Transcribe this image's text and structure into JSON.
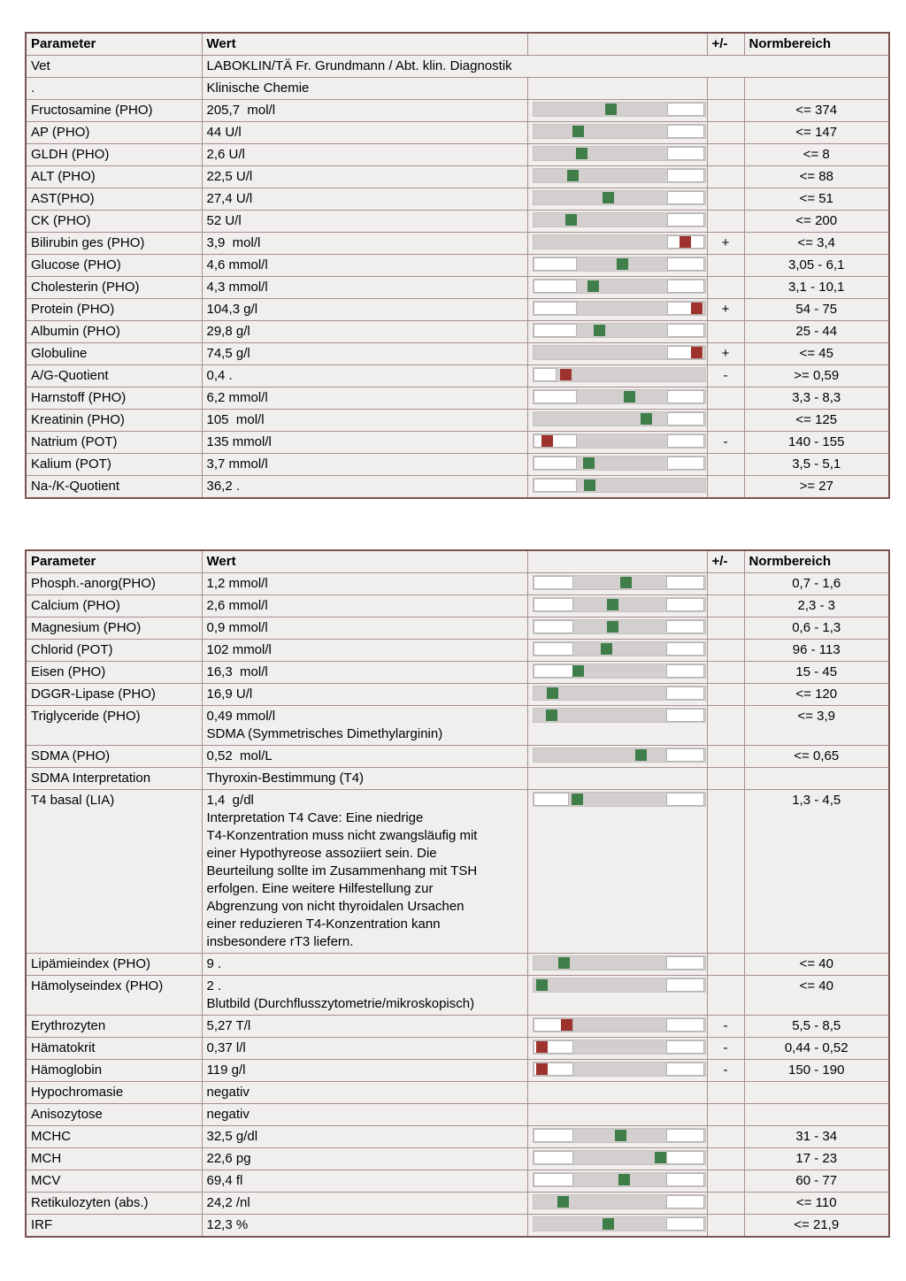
{
  "colors": {
    "marker_green": "#3f7d49",
    "marker_red": "#9e322c",
    "track_gray": "#d2cfce",
    "cell_background": "#f1efee",
    "table_border": "#7a5454"
  },
  "tables": [
    {
      "headers": [
        "Parameter",
        "Wert",
        "",
        "+/-",
        "Normbereich"
      ],
      "rows": [
        {
          "parameter": "Vet",
          "value": "LABOKLIN/TÄ Fr. Grundmann / Abt. klin. Diagnostik",
          "span": true
        },
        {
          "parameter": ".",
          "value": "Klinische Chemie",
          "flag": "",
          "norm": ""
        },
        {
          "parameter": "Fructosamine (PHO)",
          "value": "205,7  mol/l",
          "flag": "",
          "norm": "<= 374",
          "bar": {
            "low": 0,
            "high": 0.776,
            "pos": 0.447,
            "color": "green"
          }
        },
        {
          "parameter": "AP (PHO)",
          "value": "44 U/l",
          "flag": "",
          "norm": "<= 147",
          "bar": {
            "low": 0,
            "high": 0.776,
            "pos": 0.256,
            "color": "green"
          }
        },
        {
          "parameter": "GLDH (PHO)",
          "value": "2,6 U/l",
          "flag": "",
          "norm": "<= 8",
          "bar": {
            "low": 0,
            "high": 0.776,
            "pos": 0.279,
            "color": "green"
          }
        },
        {
          "parameter": "ALT (PHO)",
          "value": "22,5 U/l",
          "flag": "",
          "norm": "<= 88",
          "bar": {
            "low": 0,
            "high": 0.776,
            "pos": 0.226,
            "color": "green"
          }
        },
        {
          "parameter": "AST(PHO)",
          "value": "27,4 U/l",
          "flag": "",
          "norm": "<= 51",
          "bar": {
            "low": 0,
            "high": 0.776,
            "pos": 0.435,
            "color": "green"
          }
        },
        {
          "parameter": "CK (PHO)",
          "value": "52 U/l",
          "flag": "",
          "norm": "<= 200",
          "bar": {
            "low": 0,
            "high": 0.776,
            "pos": 0.219,
            "color": "green"
          }
        },
        {
          "parameter": "Bilirubin ges (PHO)",
          "value": "3,9  mol/l",
          "flag": "+",
          "norm": "<= 3,4",
          "bar": {
            "low": 0,
            "high": 0.776,
            "pos": 0.884,
            "color": "red"
          }
        },
        {
          "parameter": "Glucose (PHO)",
          "value": "4,6 mmol/l",
          "flag": "",
          "norm": "3,05 - 6,1",
          "bar": {
            "low": 0.252,
            "high": 0.776,
            "pos": 0.518,
            "color": "green"
          }
        },
        {
          "parameter": "Cholesterin (PHO)",
          "value": "4,3 mmol/l",
          "flag": "",
          "norm": "3,1 - 10,1",
          "bar": {
            "low": 0.252,
            "high": 0.776,
            "pos": 0.345,
            "color": "green"
          }
        },
        {
          "parameter": "Protein (PHO)",
          "value": "104,3 g/l",
          "flag": "+",
          "norm": "54 - 75",
          "bar": {
            "low": 0.252,
            "high": 0.776,
            "pos": 0.947,
            "color": "red"
          }
        },
        {
          "parameter": "Albumin (PHO)",
          "value": "29,8 g/l",
          "flag": "",
          "norm": "25 - 44",
          "bar": {
            "low": 0.252,
            "high": 0.776,
            "pos": 0.384,
            "color": "green"
          }
        },
        {
          "parameter": "Globuline",
          "value": "74,5 g/l",
          "flag": "+",
          "norm": "<= 45",
          "bar": {
            "low": 0,
            "high": 0.776,
            "pos": 0.947,
            "color": "red"
          }
        },
        {
          "parameter": "A/G-Quotient",
          "value": "0,4 .",
          "flag": "-",
          "norm": ">= 0,59",
          "bar": {
            "low": 0.133,
            "high": 1,
            "pos": 0.183,
            "color": "red"
          }
        },
        {
          "parameter": "Harnstoff (PHO)",
          "value": "6,2 mmol/l",
          "flag": "",
          "norm": "3,3 - 8,3",
          "bar": {
            "low": 0.252,
            "high": 0.776,
            "pos": 0.556,
            "color": "green"
          }
        },
        {
          "parameter": "Kreatinin (PHO)",
          "value": "105  mol/l",
          "flag": "",
          "norm": "<= 125",
          "bar": {
            "low": 0,
            "high": 0.776,
            "pos": 0.656,
            "color": "green"
          }
        },
        {
          "parameter": "Natrium (POT)",
          "value": "135 mmol/l",
          "flag": "-",
          "norm": "140 - 155",
          "bar": {
            "low": 0.252,
            "high": 0.776,
            "pos": 0.075,
            "color": "red"
          }
        },
        {
          "parameter": "Kalium (POT)",
          "value": "3,7 mmol/l",
          "flag": "",
          "norm": "3,5 - 5,1",
          "bar": {
            "low": 0.252,
            "high": 0.776,
            "pos": 0.321,
            "color": "green"
          }
        },
        {
          "parameter": "Na-/K-Quotient",
          "value": "36,2 .",
          "flag": "",
          "norm": ">= 27",
          "bar": {
            "low": 0.252,
            "high": 1,
            "pos": 0.326,
            "color": "green"
          }
        }
      ]
    },
    {
      "headers": [
        "Parameter",
        "Wert",
        "",
        "+/-",
        "Normbereich"
      ],
      "rows": [
        {
          "parameter": "Phosph.-anorg(PHO)",
          "value": "1,2 mmol/l",
          "flag": "",
          "norm": "0,7 - 1,6",
          "bar": {
            "low": 0.23,
            "high": 0.775,
            "pos": 0.535,
            "color": "green"
          }
        },
        {
          "parameter": "Calcium (PHO)",
          "value": "2,6 mmol/l",
          "flag": "",
          "norm": "2,3 - 3",
          "bar": {
            "low": 0.23,
            "high": 0.775,
            "pos": 0.458,
            "color": "green"
          }
        },
        {
          "parameter": "Magnesium (PHO)",
          "value": "0,9 mmol/l",
          "flag": "",
          "norm": "0,6 - 1,3",
          "bar": {
            "low": 0.23,
            "high": 0.775,
            "pos": 0.46,
            "color": "green"
          }
        },
        {
          "parameter": "Chlorid (POT)",
          "value": "102 mmol/l",
          "flag": "",
          "norm": "96 - 113",
          "bar": {
            "low": 0.23,
            "high": 0.775,
            "pos": 0.423,
            "color": "green"
          }
        },
        {
          "parameter": "Eisen (PHO)",
          "value": "16,3  mol/l",
          "flag": "",
          "norm": "15 - 45",
          "bar": {
            "low": 0.23,
            "high": 0.775,
            "pos": 0.26,
            "color": "green"
          }
        },
        {
          "parameter": "DGGR-Lipase (PHO)",
          "value": "16,9 U/l",
          "flag": "",
          "norm": "<= 120",
          "bar": {
            "low": 0,
            "high": 0.775,
            "pos": 0.11,
            "color": "green"
          }
        },
        {
          "parameter": "Triglyceride (PHO)",
          "value": "0,49 mmol/l\nSDMA (Symmetrisches Dimethylarginin)",
          "flag": "",
          "norm": "<= 3,9",
          "bar": {
            "low": 0,
            "high": 0.775,
            "pos": 0.103,
            "color": "green"
          }
        },
        {
          "parameter": "SDMA (PHO)",
          "value": "0,52  mol/L",
          "flag": "",
          "norm": "<= 0,65",
          "bar": {
            "low": 0,
            "high": 0.775,
            "pos": 0.623,
            "color": "green"
          }
        },
        {
          "parameter": "SDMA Interpretation",
          "value": "Thyroxin-Bestimmung (T4)",
          "flag": "",
          "norm": ""
        },
        {
          "parameter": "T4 basal (LIA)",
          "value": "1,4  g/dl\nInterpretation T4 Cave: Eine niedrige\nT4-Konzentration muss nicht zwangsläufig mit\neiner Hypothyreose assoziiert sein. Die\nBeurteilung sollte im Zusammenhang mit TSH\nerfolgen. Eine weitere Hilfestellung zur\nAbgrenzung von nicht thyroidalen Ursachen\neiner reduzieren T4-Konzentration kann\ninsbesondere rT3 liefern.",
          "flag": "",
          "norm": "1,3 - 4,5",
          "bar": {
            "low": 0.205,
            "high": 0.775,
            "pos": 0.25,
            "color": "green"
          }
        },
        {
          "parameter": "Lipämieindex (PHO)",
          "value": "9 .",
          "flag": "",
          "norm": "<= 40",
          "bar": {
            "low": 0,
            "high": 0.775,
            "pos": 0.174,
            "color": "green"
          }
        },
        {
          "parameter": "Hämolyseindex (PHO)",
          "value": "2 .\nBlutbild (Durchflusszytometrie/mikroskopisch)",
          "flag": "",
          "norm": "<= 40",
          "bar": {
            "low": 0,
            "high": 0.775,
            "pos": 0.048,
            "color": "green"
          }
        },
        {
          "parameter": "Erythrozyten",
          "value": "5,27 T/l",
          "flag": "-",
          "norm": "5,5 - 8,5",
          "bar": {
            "low": 0.23,
            "high": 0.775,
            "pos": 0.19,
            "color": "red"
          }
        },
        {
          "parameter": "Hämatokrit",
          "value": "0,37 l/l",
          "flag": "-",
          "norm": "0,44 - 0,52",
          "bar": {
            "low": 0.23,
            "high": 0.775,
            "pos": 0.045,
            "color": "red"
          }
        },
        {
          "parameter": "Hämoglobin",
          "value": "119 g/l",
          "flag": "-",
          "norm": "150 - 190",
          "bar": {
            "low": 0.23,
            "high": 0.775,
            "pos": 0.045,
            "color": "red"
          }
        },
        {
          "parameter": "Hypochromasie",
          "value": "negativ",
          "flag": "",
          "norm": ""
        },
        {
          "parameter": "Anisozytose",
          "value": "negativ",
          "flag": "",
          "norm": ""
        },
        {
          "parameter": "MCHC",
          "value": "32,5 g/dl",
          "flag": "",
          "norm": "31 - 34",
          "bar": {
            "low": 0.23,
            "high": 0.775,
            "pos": 0.503,
            "color": "green"
          }
        },
        {
          "parameter": "MCH",
          "value": "22,6 pg",
          "flag": "",
          "norm": "17 - 23",
          "bar": {
            "low": 0.23,
            "high": 0.775,
            "pos": 0.739,
            "color": "green"
          }
        },
        {
          "parameter": "MCV",
          "value": "69,4 fl",
          "flag": "",
          "norm": "60 - 77",
          "bar": {
            "low": 0.23,
            "high": 0.775,
            "pos": 0.528,
            "color": "green"
          }
        },
        {
          "parameter": "Retikulozyten (abs.)",
          "value": "24,2 /nl",
          "flag": "",
          "norm": "<= 110",
          "bar": {
            "low": 0,
            "high": 0.775,
            "pos": 0.168,
            "color": "green"
          }
        },
        {
          "parameter": "IRF",
          "value": "12,3 %",
          "flag": "",
          "norm": "<= 21,9",
          "bar": {
            "low": 0,
            "high": 0.775,
            "pos": 0.433,
            "color": "green"
          }
        }
      ]
    }
  ]
}
